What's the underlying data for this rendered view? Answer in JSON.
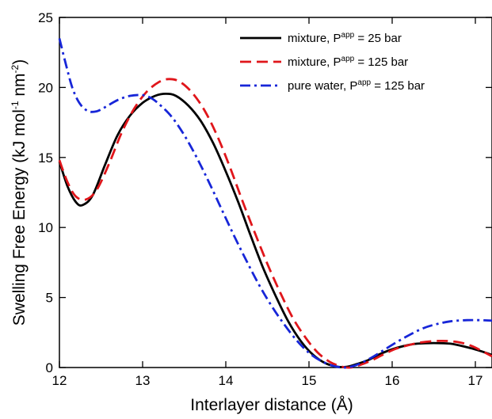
{
  "chart_data": {
    "type": "line",
    "xlabel": "Interlayer distance (Å)",
    "ylabel_parts": {
      "base": "Swelling Free Energy (kJ mol",
      "exp1": "-1",
      "mid": " nm",
      "exp2": "-2",
      "end": ")"
    },
    "xlim": [
      12,
      17.2
    ],
    "ylim": [
      0,
      25
    ],
    "x_ticks": [
      12,
      13,
      14,
      15,
      16,
      17
    ],
    "y_ticks": [
      0,
      5,
      10,
      15,
      20,
      25
    ],
    "grid": false,
    "legend_position": "top-right",
    "series": [
      {
        "name_main": "mixture, P",
        "name_sup": "app",
        "name_tail": " = 25 bar",
        "color": "#000000",
        "dash": "solid",
        "x": [
          12.0,
          12.1,
          12.2,
          12.28,
          12.4,
          12.55,
          12.7,
          12.85,
          13.0,
          13.15,
          13.28,
          13.4,
          13.55,
          13.7,
          13.85,
          14.0,
          14.15,
          14.3,
          14.45,
          14.6,
          14.75,
          14.9,
          15.05,
          15.2,
          15.35,
          15.45,
          15.55,
          15.7,
          15.85,
          16.0,
          16.15,
          16.3,
          16.5,
          16.7,
          16.9,
          17.05,
          17.2
        ],
        "y": [
          14.7,
          12.9,
          11.8,
          11.6,
          12.3,
          14.5,
          16.6,
          18.0,
          18.9,
          19.4,
          19.55,
          19.4,
          18.7,
          17.6,
          16.0,
          14.0,
          11.8,
          9.4,
          7.1,
          5.1,
          3.3,
          1.9,
          0.9,
          0.3,
          0.05,
          0.05,
          0.2,
          0.5,
          0.95,
          1.3,
          1.55,
          1.7,
          1.75,
          1.7,
          1.45,
          1.2,
          0.9
        ]
      },
      {
        "name_main": "mixture, P",
        "name_sup": "app",
        "name_tail": " = 125 bar",
        "color": "#e0161b",
        "dash": "dashed",
        "x": [
          12.0,
          12.1,
          12.2,
          12.32,
          12.45,
          12.6,
          12.75,
          12.9,
          13.05,
          13.2,
          13.32,
          13.45,
          13.6,
          13.75,
          13.9,
          14.05,
          14.2,
          14.35,
          14.5,
          14.65,
          14.8,
          14.95,
          15.1,
          15.25,
          15.4,
          15.5,
          15.6,
          15.75,
          15.9,
          16.05,
          16.2,
          16.35,
          16.55,
          16.75,
          16.95,
          17.2
        ],
        "y": [
          14.8,
          13.2,
          12.2,
          12.0,
          12.7,
          14.6,
          16.8,
          18.5,
          19.7,
          20.4,
          20.6,
          20.4,
          19.6,
          18.3,
          16.5,
          14.3,
          11.9,
          9.6,
          7.4,
          5.4,
          3.6,
          2.2,
          1.1,
          0.4,
          0.05,
          0.0,
          0.15,
          0.5,
          0.95,
          1.35,
          1.6,
          1.8,
          1.9,
          1.85,
          1.55,
          0.8
        ]
      },
      {
        "name_main": "pure water, P",
        "name_sup": "app",
        "name_tail": " = 125 bar",
        "color": "#1726d8",
        "dash": "dashdot",
        "x": [
          12.0,
          12.08,
          12.16,
          12.25,
          12.35,
          12.45,
          12.55,
          12.7,
          12.85,
          13.0,
          13.1,
          13.2,
          13.35,
          13.5,
          13.65,
          13.8,
          13.95,
          14.1,
          14.25,
          14.4,
          14.55,
          14.7,
          14.85,
          15.0,
          15.15,
          15.3,
          15.42,
          15.5,
          15.6,
          15.75,
          15.9,
          16.05,
          16.2,
          16.35,
          16.5,
          16.7,
          16.9,
          17.05,
          17.2
        ],
        "y": [
          23.5,
          21.6,
          19.9,
          18.8,
          18.3,
          18.3,
          18.6,
          19.1,
          19.4,
          19.45,
          19.25,
          18.8,
          17.9,
          16.6,
          15.0,
          13.2,
          11.3,
          9.4,
          7.6,
          5.9,
          4.4,
          3.1,
          1.95,
          1.05,
          0.45,
          0.1,
          0.0,
          0.05,
          0.25,
          0.7,
          1.25,
          1.8,
          2.3,
          2.75,
          3.05,
          3.3,
          3.38,
          3.38,
          3.35
        ]
      }
    ]
  }
}
